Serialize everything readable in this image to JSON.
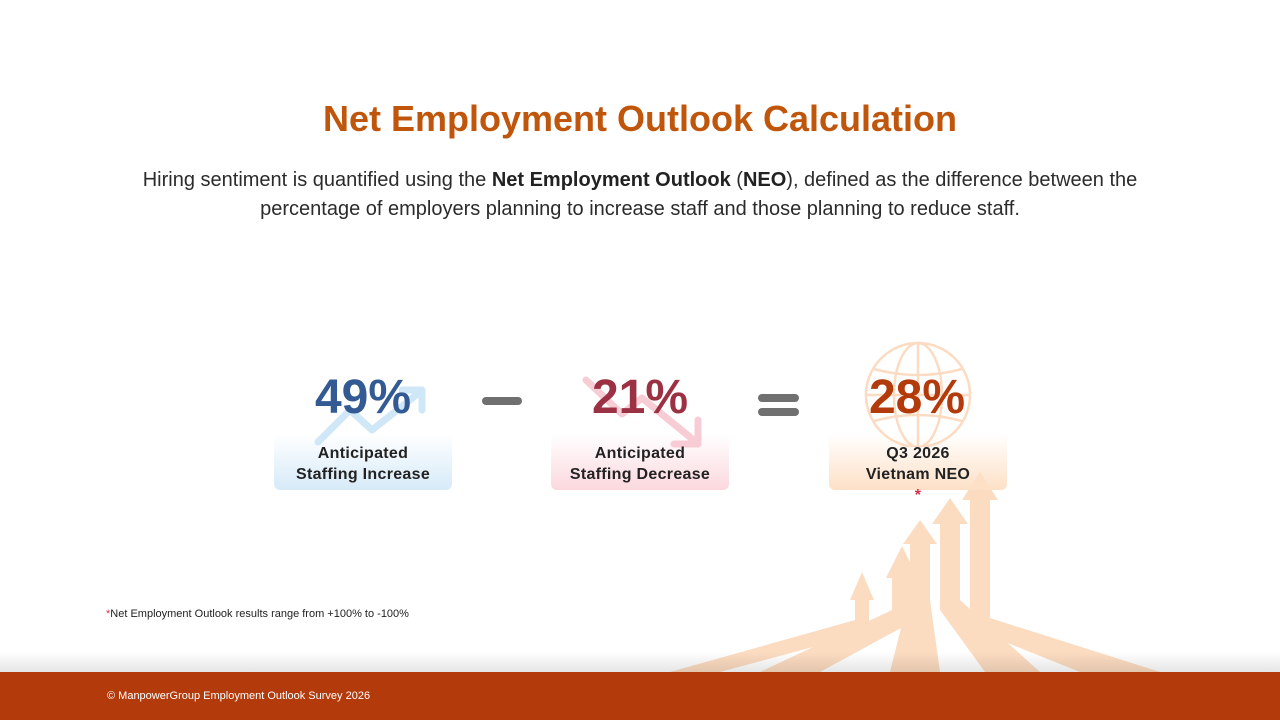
{
  "title": "Net Employment Outlook Calculation",
  "intro": {
    "part1": "Hiring sentiment is quantified using the ",
    "bold1": "Net Employment Outlook",
    "part2": " (",
    "bold2": "NEO",
    "part3": "), defined as the difference between the percentage of employers planning to increase staff and those planning to reduce staff."
  },
  "equation": {
    "increase": {
      "value": "49%",
      "label_line1": "Anticipated",
      "label_line2": "Staffing Increase",
      "color": "#335a93",
      "icon": "trend-up-arrow-icon"
    },
    "operator_minus": "minus",
    "decrease": {
      "value": "21%",
      "label_line1": "Anticipated",
      "label_line2": "Staffing Decrease",
      "color": "#9b3143",
      "icon": "trend-down-arrow-icon"
    },
    "operator_equals": "equals",
    "result": {
      "value": "28%",
      "label_line1": "Q3 2026",
      "label_line2": "Vietnam NEO",
      "marker": "*",
      "color": "#b33a0a",
      "icon": "globe-icon"
    }
  },
  "footnote": {
    "marker": "*",
    "text": "Net Employment Outlook results range from +100% to -100%"
  },
  "footer": {
    "text": "© ManpowerGroup Employment Outlook Survey 2026",
    "color": "#b33a0a"
  },
  "colors": {
    "title": "#c0560b",
    "accent": "#b33a0a"
  }
}
